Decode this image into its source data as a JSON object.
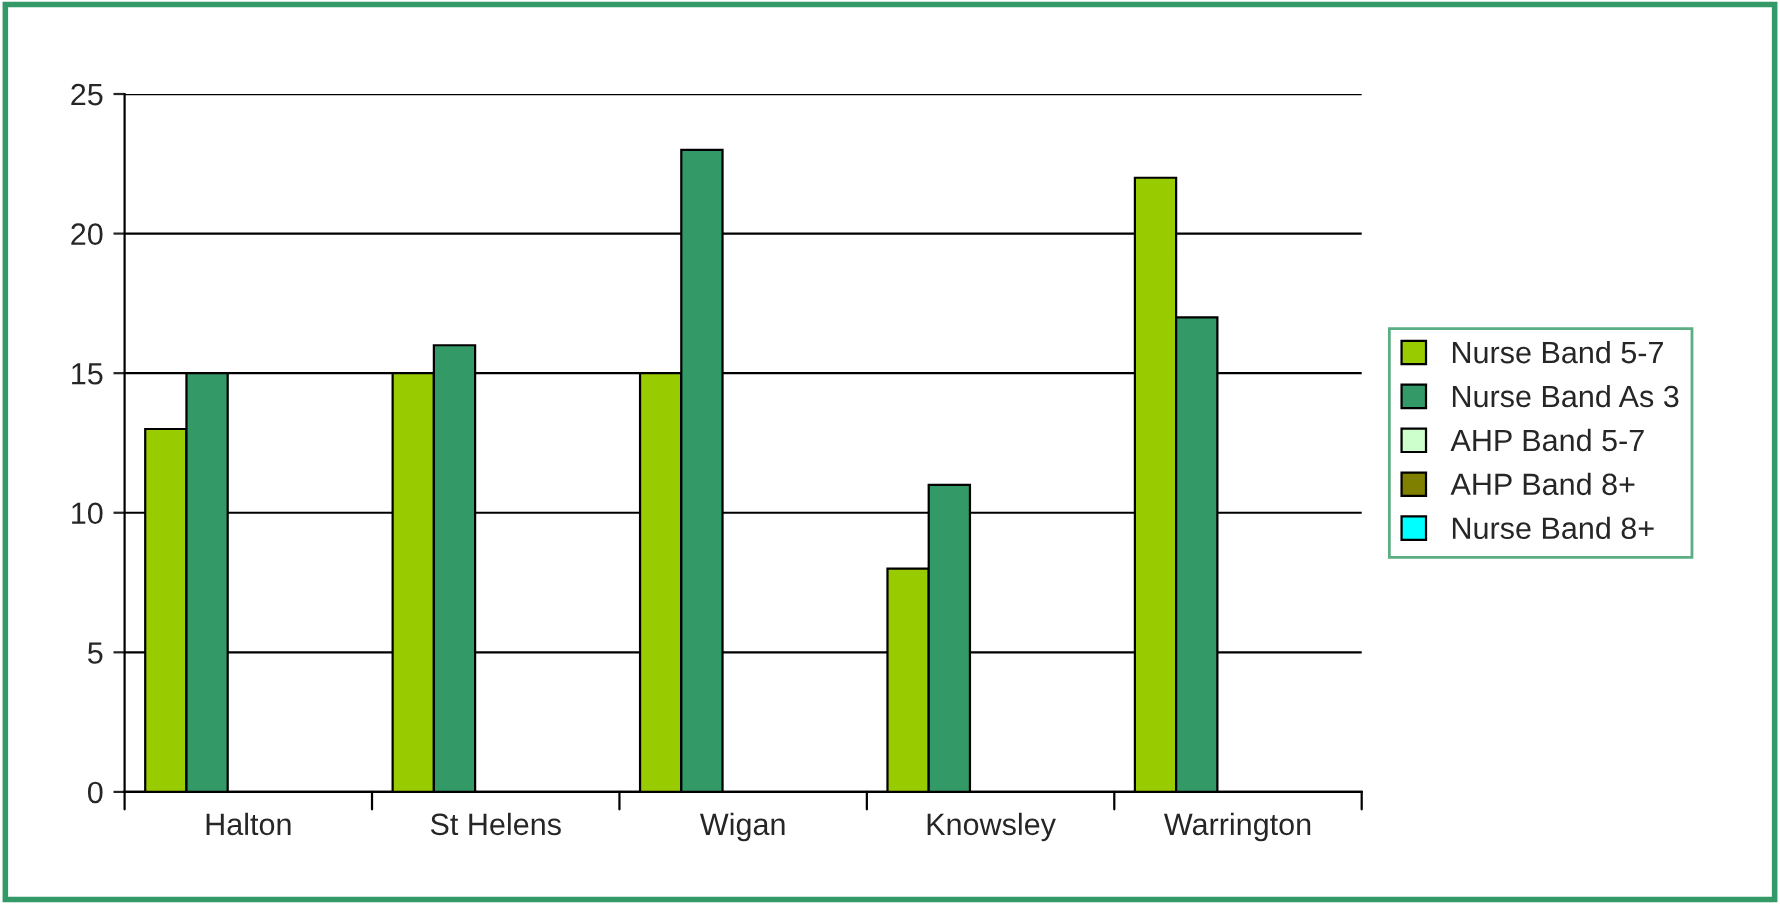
{
  "chart_data": {
    "type": "bar",
    "categories": [
      "Halton",
      "St Helens",
      "Wigan",
      "Knowsley",
      "Warrington"
    ],
    "series": [
      {
        "name": "Nurse Band 5-7",
        "color": "#99cc00",
        "values": [
          13,
          15,
          15,
          8,
          22
        ]
      },
      {
        "name": "Nurse Band As 3",
        "color": "#339966",
        "values": [
          15,
          16,
          23,
          11,
          17
        ]
      },
      {
        "name": "AHP Band 5-7",
        "color": "#ccffcc",
        "values": [
          null,
          null,
          null,
          null,
          null
        ]
      },
      {
        "name": "AHP Band 8+",
        "color": "#808000",
        "values": [
          null,
          null,
          null,
          null,
          null
        ]
      },
      {
        "name": "Nurse Band 8+",
        "color": "#00ffff",
        "values": [
          null,
          null,
          null,
          null,
          null
        ]
      }
    ],
    "ylim": [
      0,
      25
    ],
    "yticks": [
      0,
      5,
      10,
      15,
      20,
      25
    ],
    "grid": "y",
    "legend": "right"
  }
}
